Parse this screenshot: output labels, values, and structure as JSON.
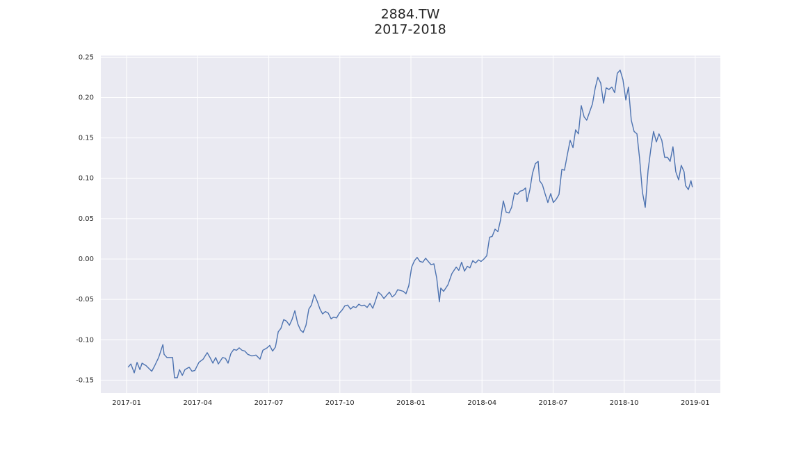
{
  "chart_data": {
    "type": "line",
    "title": "2884.TW",
    "subtitle": "2017-2018",
    "color": "#4c72b0",
    "grid": true,
    "background": "#eaeaf2",
    "xlim": [
      -1.09,
      25.06
    ],
    "xticks": [
      {
        "value": 0,
        "label": "2017-01"
      },
      {
        "value": 3,
        "label": "2017-04"
      },
      {
        "value": 6,
        "label": "2017-07"
      },
      {
        "value": 9,
        "label": "2017-10"
      },
      {
        "value": 12,
        "label": "2018-01"
      },
      {
        "value": 15,
        "label": "2018-04"
      },
      {
        "value": 18,
        "label": "2018-07"
      },
      {
        "value": 21,
        "label": "2018-10"
      },
      {
        "value": 24,
        "label": "2019-01"
      }
    ],
    "ylim": [
      -0.166,
      0.252
    ],
    "yticks": [
      -0.15,
      {
        "value": -0.1,
        "label": "-0.10"
      },
      -0.05,
      {
        "value": 0,
        "label": "0.00"
      },
      0.05,
      {
        "value": 0.1,
        "label": "0.10"
      },
      0.15,
      {
        "value": 0.2,
        "label": "0.20"
      },
      0.25
    ],
    "x": [
      0.06,
      0.18,
      0.32,
      0.44,
      0.56,
      0.65,
      0.82,
      1.06,
      1.17,
      1.35,
      1.53,
      1.58,
      1.7,
      1.94,
      2.02,
      2.14,
      2.23,
      2.35,
      2.46,
      2.64,
      2.76,
      2.88,
      3.05,
      3.23,
      3.4,
      3.52,
      3.64,
      3.76,
      3.87,
      4.05,
      4.17,
      4.28,
      4.4,
      4.52,
      4.64,
      4.75,
      4.87,
      4.99,
      5.11,
      5.28,
      5.46,
      5.63,
      5.75,
      5.93,
      6.04,
      6.16,
      6.28,
      6.4,
      6.51,
      6.63,
      6.75,
      6.87,
      6.98,
      7.1,
      7.22,
      7.34,
      7.45,
      7.57,
      7.69,
      7.8,
      7.92,
      8.04,
      8.16,
      8.27,
      8.39,
      8.51,
      8.63,
      8.74,
      8.86,
      8.98,
      9.1,
      9.21,
      9.33,
      9.45,
      9.56,
      9.68,
      9.8,
      9.92,
      10.03,
      10.15,
      10.27,
      10.39,
      10.5,
      10.62,
      10.74,
      10.86,
      10.97,
      11.09,
      11.21,
      11.33,
      11.44,
      11.56,
      11.68,
      11.79,
      11.91,
      12.03,
      12.15,
      12.26,
      12.38,
      12.5,
      12.62,
      12.73,
      12.85,
      12.97,
      13.09,
      13.2,
      13.26,
      13.38,
      13.56,
      13.73,
      13.91,
      14.02,
      14.14,
      14.26,
      14.38,
      14.49,
      14.61,
      14.73,
      14.85,
      14.96,
      15.08,
      15.2,
      15.32,
      15.43,
      15.55,
      15.67,
      15.78,
      15.9,
      16.02,
      16.14,
      16.25,
      16.37,
      16.49,
      16.61,
      16.72,
      16.84,
      16.9,
      17.02,
      17.13,
      17.25,
      17.37,
      17.43,
      17.55,
      17.66,
      17.78,
      17.9,
      18.01,
      18.13,
      18.25,
      18.37,
      18.48,
      18.6,
      18.72,
      18.84,
      18.95,
      19.07,
      19.19,
      19.31,
      19.42,
      19.54,
      19.66,
      19.78,
      19.89,
      20.01,
      20.13,
      20.24,
      20.36,
      20.48,
      20.6,
      20.71,
      20.83,
      20.95,
      21.07,
      21.18,
      21.3,
      21.42,
      21.54,
      21.65,
      21.77,
      21.89,
      22.01,
      22.12,
      22.24,
      22.36,
      22.47,
      22.59,
      22.71,
      22.83,
      22.94,
      23.06,
      23.18,
      23.3,
      23.41,
      23.53,
      23.59,
      23.71,
      23.82,
      23.88
    ],
    "values": [
      -0.134,
      -0.13,
      -0.141,
      -0.128,
      -0.137,
      -0.129,
      -0.132,
      -0.139,
      -0.133,
      -0.122,
      -0.106,
      -0.118,
      -0.122,
      -0.122,
      -0.147,
      -0.147,
      -0.137,
      -0.144,
      -0.137,
      -0.134,
      -0.139,
      -0.138,
      -0.128,
      -0.124,
      -0.116,
      -0.122,
      -0.129,
      -0.122,
      -0.13,
      -0.122,
      -0.123,
      -0.129,
      -0.117,
      -0.112,
      -0.113,
      -0.11,
      -0.113,
      -0.114,
      -0.118,
      -0.12,
      -0.119,
      -0.124,
      -0.113,
      -0.11,
      -0.107,
      -0.114,
      -0.109,
      -0.09,
      -0.086,
      -0.075,
      -0.077,
      -0.082,
      -0.075,
      -0.064,
      -0.08,
      -0.088,
      -0.091,
      -0.082,
      -0.062,
      -0.057,
      -0.044,
      -0.052,
      -0.062,
      -0.068,
      -0.065,
      -0.067,
      -0.074,
      -0.072,
      -0.073,
      -0.067,
      -0.063,
      -0.058,
      -0.057,
      -0.062,
      -0.059,
      -0.06,
      -0.056,
      -0.058,
      -0.057,
      -0.06,
      -0.055,
      -0.061,
      -0.052,
      -0.041,
      -0.044,
      -0.049,
      -0.045,
      -0.041,
      -0.047,
      -0.044,
      -0.038,
      -0.039,
      -0.04,
      -0.043,
      -0.033,
      -0.01,
      -0.002,
      0.002,
      -0.003,
      -0.004,
      0.001,
      -0.003,
      -0.007,
      -0.006,
      -0.024,
      -0.053,
      -0.036,
      -0.04,
      -0.032,
      -0.018,
      -0.01,
      -0.014,
      -0.004,
      -0.015,
      -0.009,
      -0.011,
      -0.002,
      -0.005,
      -0.001,
      -0.003,
      0.0,
      0.004,
      0.027,
      0.028,
      0.037,
      0.034,
      0.048,
      0.072,
      0.058,
      0.057,
      0.064,
      0.082,
      0.08,
      0.084,
      0.085,
      0.088,
      0.071,
      0.086,
      0.106,
      0.118,
      0.121,
      0.097,
      0.092,
      0.081,
      0.07,
      0.081,
      0.07,
      0.074,
      0.08,
      0.111,
      0.11,
      0.129,
      0.147,
      0.138,
      0.16,
      0.155,
      0.19,
      0.176,
      0.172,
      0.182,
      0.192,
      0.212,
      0.225,
      0.218,
      0.193,
      0.212,
      0.21,
      0.213,
      0.206,
      0.23,
      0.234,
      0.222,
      0.197,
      0.213,
      0.172,
      0.158,
      0.155,
      0.125,
      0.083,
      0.064,
      0.11,
      0.135,
      0.158,
      0.145,
      0.155,
      0.147,
      0.126,
      0.126,
      0.121,
      0.139,
      0.108,
      0.098,
      0.116,
      0.108,
      0.091,
      0.086,
      0.097,
      0.089
    ]
  }
}
